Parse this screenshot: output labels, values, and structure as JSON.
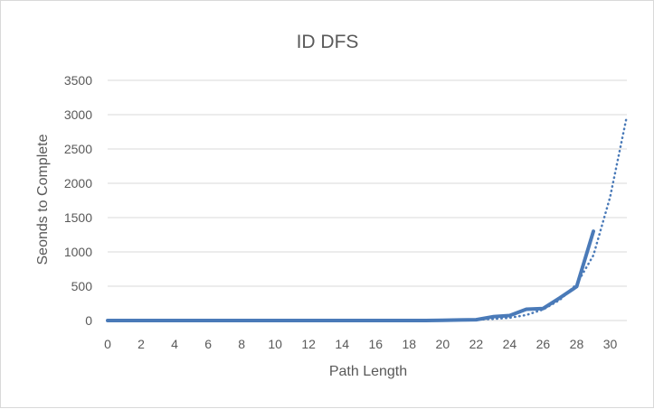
{
  "chart_data": {
    "type": "line",
    "title": "ID DFS",
    "xlabel": "Path Length",
    "ylabel": "Seonds to Complete",
    "xlim": [
      0,
      31
    ],
    "ylim": [
      0,
      3500
    ],
    "x_ticks": [
      0,
      2,
      4,
      6,
      8,
      10,
      12,
      14,
      16,
      18,
      20,
      22,
      24,
      26,
      28,
      30
    ],
    "y_ticks": [
      0,
      500,
      1000,
      1500,
      2000,
      2500,
      3000,
      3500
    ],
    "grid": true,
    "legend": "none",
    "colors": {
      "series": "#4a7ab8",
      "grid": "#d9d9d9",
      "text": "#595959"
    },
    "series": [
      {
        "style": "solid",
        "x": [
          0,
          1,
          2,
          3,
          4,
          5,
          6,
          7,
          8,
          9,
          10,
          11,
          12,
          13,
          14,
          15,
          16,
          17,
          18,
          19,
          20,
          21,
          22,
          23,
          24,
          25,
          26,
          27,
          28,
          29
        ],
        "values": [
          0,
          0,
          0,
          0,
          0,
          0,
          0,
          0,
          0,
          0,
          0,
          0,
          0,
          0,
          0,
          0,
          0,
          0,
          0,
          0,
          2,
          8,
          12,
          55,
          72,
          165,
          175,
          330,
          495,
          1300
        ]
      },
      {
        "style": "dotted-trendline",
        "x": [
          20,
          21,
          22,
          23,
          24,
          25,
          26,
          27,
          28,
          29,
          30,
          31
        ],
        "values": [
          2,
          5,
          12,
          22,
          40,
          80,
          160,
          300,
          530,
          950,
          1800,
          2980
        ]
      }
    ]
  }
}
